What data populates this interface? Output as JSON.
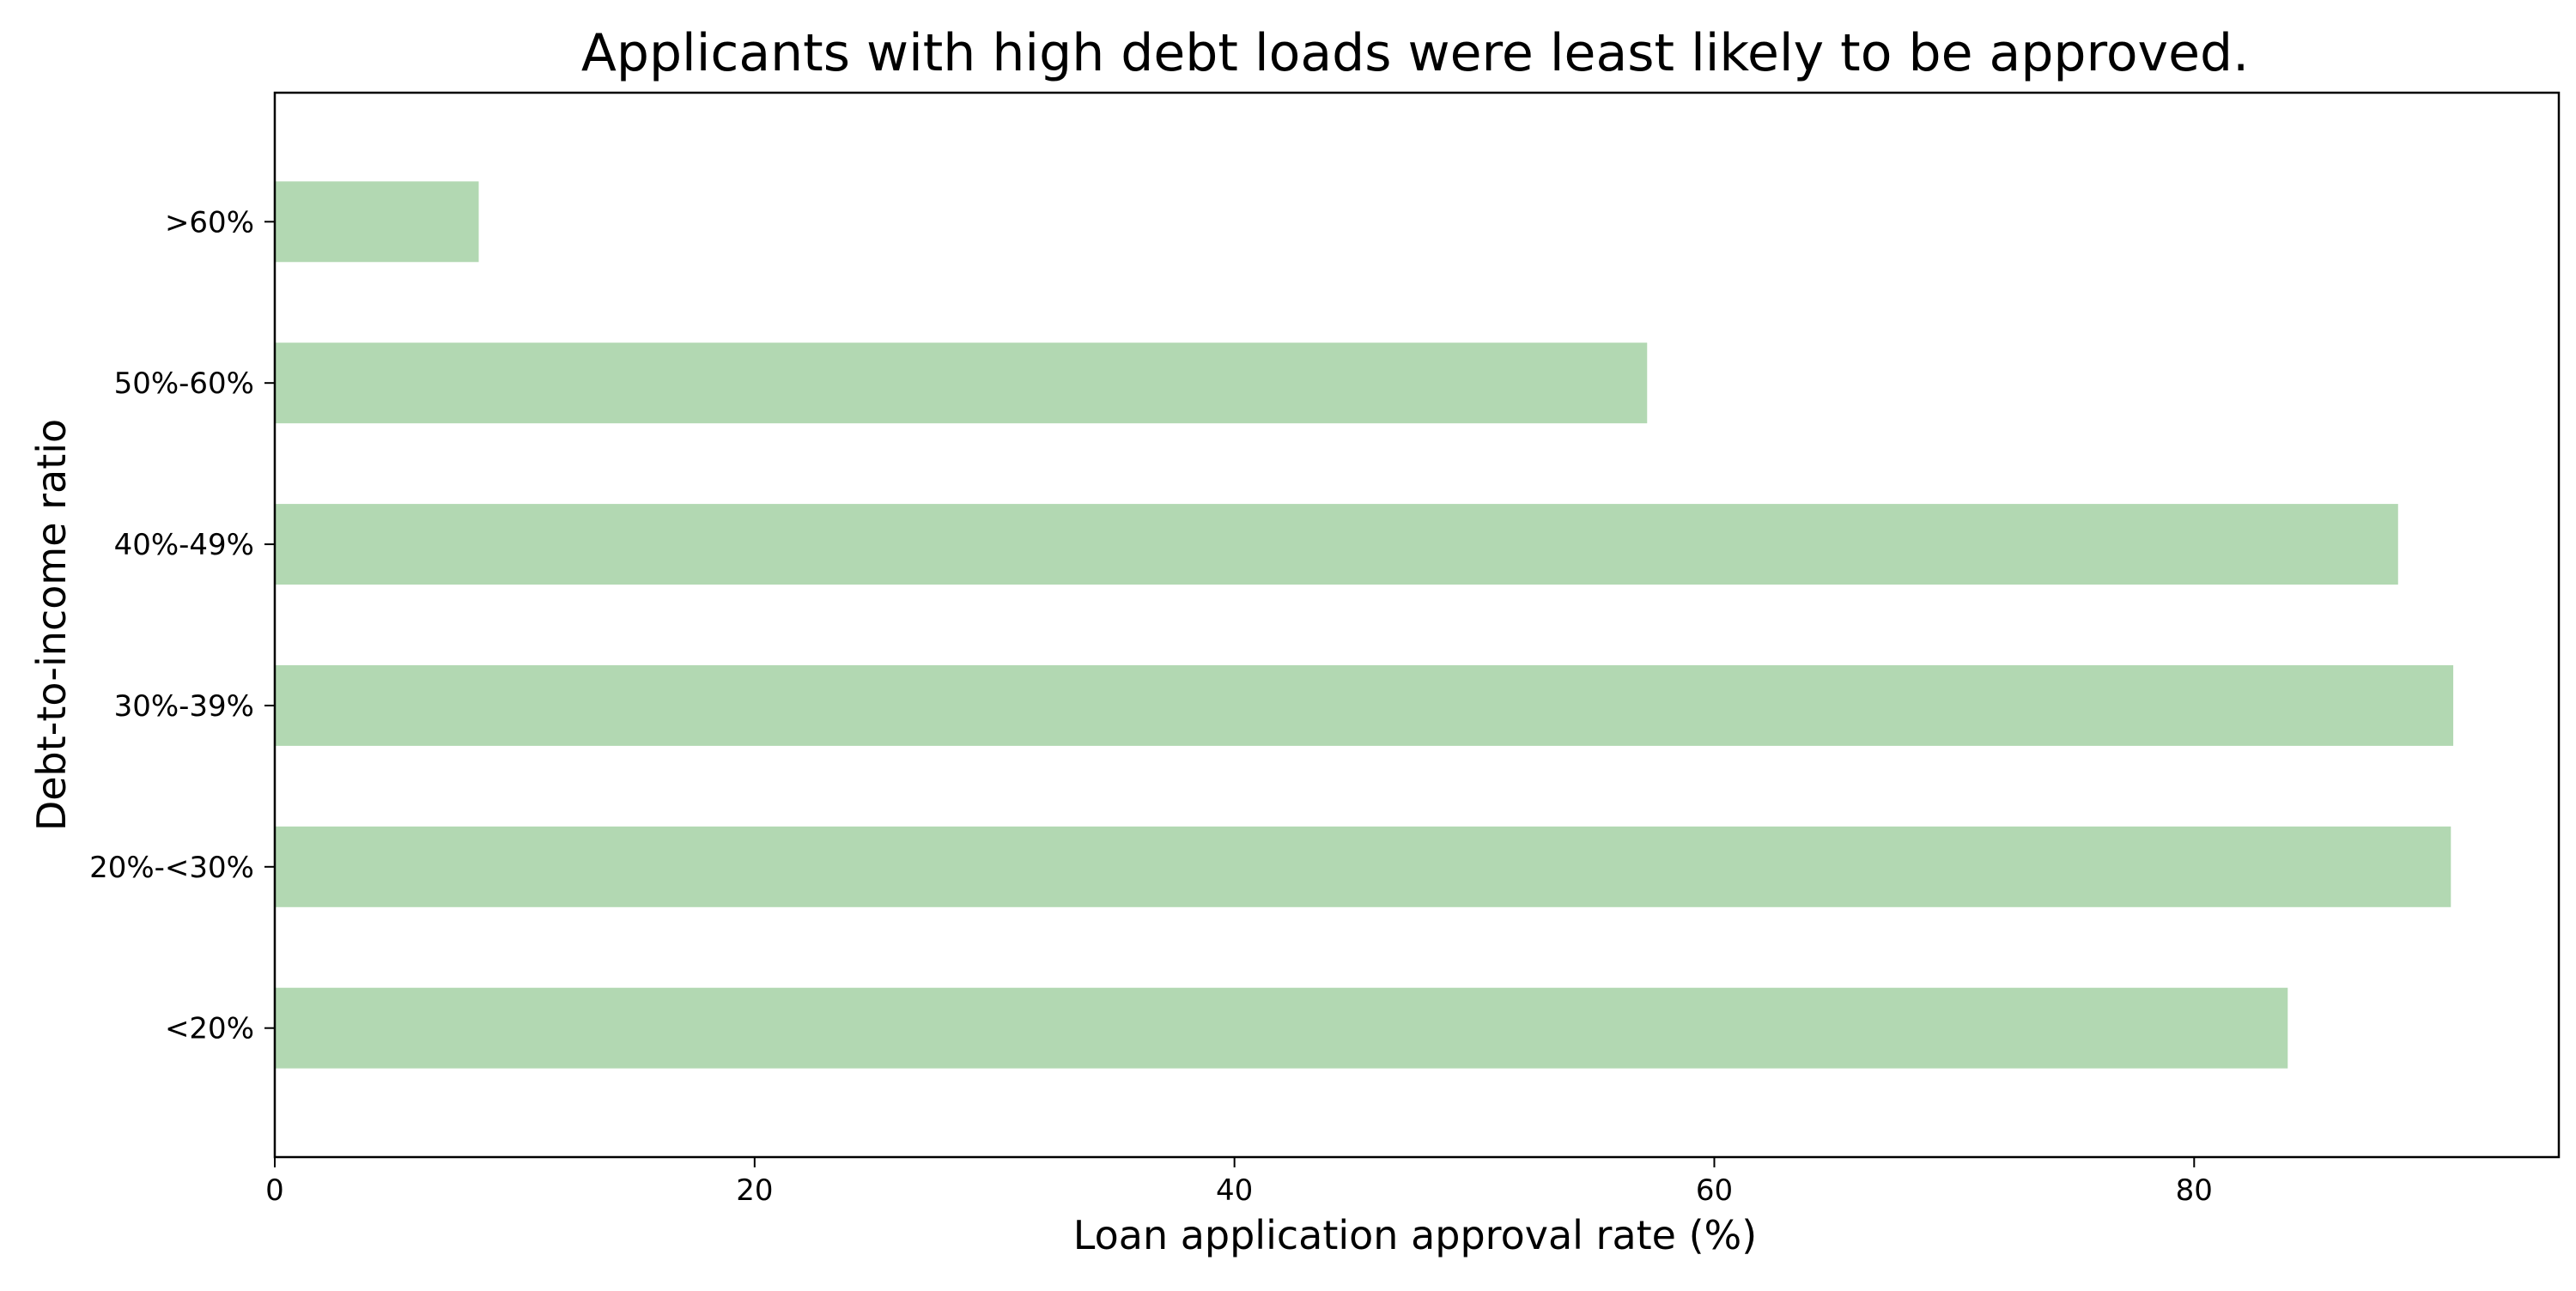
{
  "chart_data": {
    "type": "bar",
    "orientation": "horizontal",
    "title": "Applicants with high debt loads were least likely to be approved.",
    "xlabel": "Loan application approval rate (%)",
    "ylabel": "Debt-to-income ratio",
    "categories": [
      "<20%",
      "20%-<30%",
      "30%-39%",
      "40%-49%",
      "50%-60%",
      ">60%"
    ],
    "values": [
      83.9,
      90.7,
      90.8,
      88.5,
      57.2,
      8.5
    ],
    "xlim": [
      0,
      95.2
    ],
    "xticks": [
      0,
      20,
      40,
      60,
      80
    ],
    "grid": false,
    "legend": "none",
    "bar_color": "#b2d8b2"
  }
}
